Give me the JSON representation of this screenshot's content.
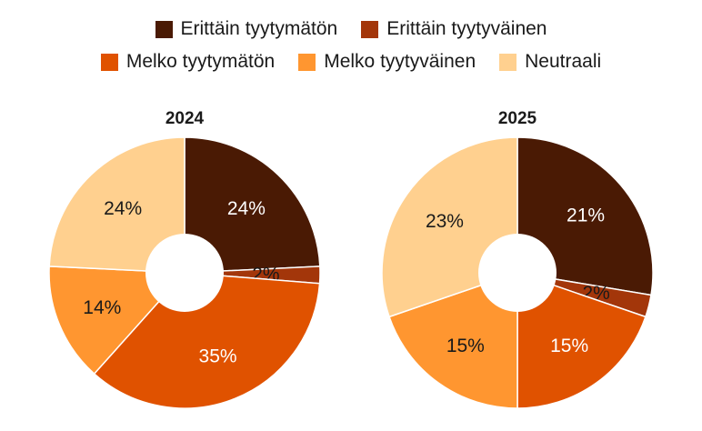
{
  "legend": {
    "items": [
      {
        "label": "Erittäin tyytymätön",
        "color": "#4a1a04"
      },
      {
        "label": "Erittäin tyytyväinen",
        "color": "#a3360a"
      },
      {
        "label": "Melko tyytymätön",
        "color": "#e05200"
      },
      {
        "label": "Melko tyytyväinen",
        "color": "#ff9630"
      },
      {
        "label": "Neutraali",
        "color": "#ffd08f"
      }
    ]
  },
  "chart_data": [
    {
      "type": "pie",
      "title": "2024",
      "categories": [
        "Erittäin tyytymätön",
        "Erittäin tyytyväinen",
        "Melko tyytymätön",
        "Melko tyytyväinen",
        "Neutraali"
      ],
      "values": [
        24,
        2,
        35,
        14,
        24
      ],
      "labels": [
        "24%",
        "2%",
        "35%",
        "14%",
        "24%"
      ],
      "label_colors": [
        "#ffffff",
        "#1a1a1a",
        "#ffffff",
        "#1a1a1a",
        "#1a1a1a"
      ]
    },
    {
      "type": "pie",
      "title": "2025",
      "categories": [
        "Erittäin tyytymätön",
        "Erittäin tyytyväinen",
        "Melko tyytymätön",
        "Melko tyytyväinen",
        "Neutraali"
      ],
      "values": [
        21,
        2,
        15,
        15,
        23
      ],
      "labels": [
        "21%",
        "2%",
        "15%",
        "15%",
        "23%"
      ],
      "label_colors": [
        "#ffffff",
        "#1a1a1a",
        "#ffffff",
        "#1a1a1a",
        "#1a1a1a"
      ]
    }
  ]
}
